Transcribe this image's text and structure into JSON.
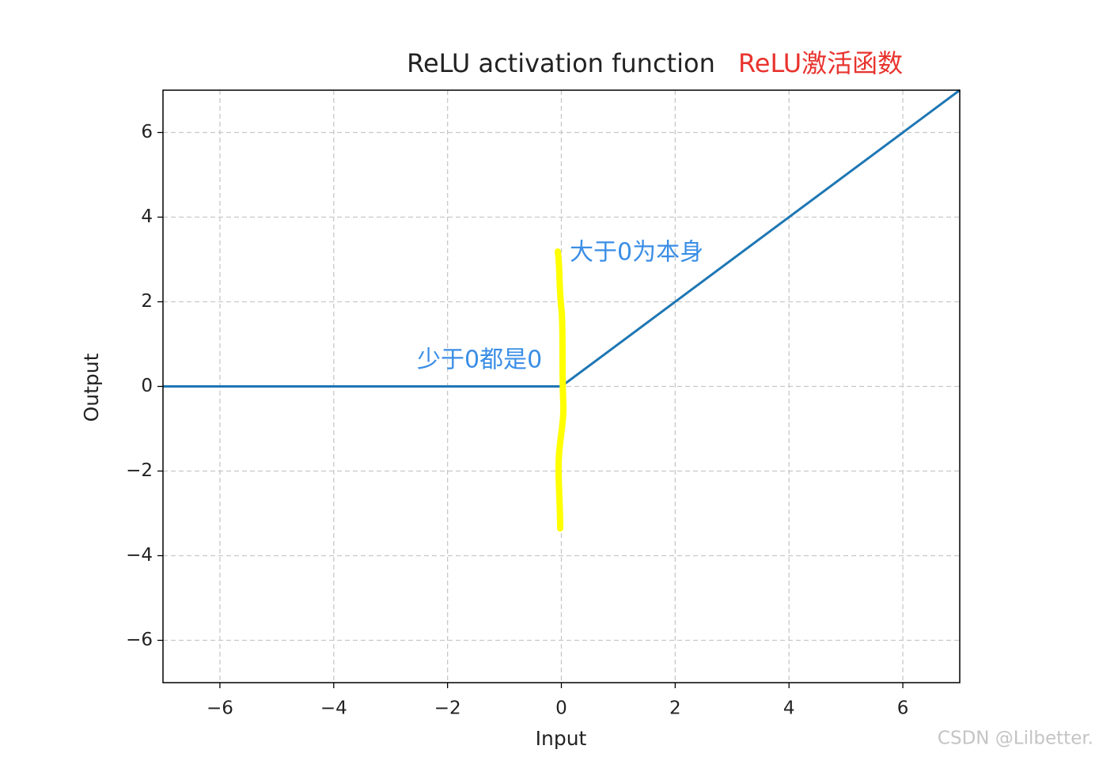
{
  "chart_data": {
    "type": "line",
    "title": "ReLU activation function",
    "xlabel": "Input",
    "ylabel": "Output",
    "x": [
      -7,
      0,
      7
    ],
    "values": [
      0,
      0,
      7
    ],
    "color": "#1f77b4",
    "xlim": [
      -7,
      7
    ],
    "ylim": [
      -7,
      7
    ],
    "xticks": [
      {
        "value": -6,
        "label": "−6"
      },
      {
        "value": -4,
        "label": "−4"
      },
      {
        "value": -2,
        "label": "−2"
      },
      0,
      2,
      4,
      6
    ],
    "yticks": [
      {
        "value": -6,
        "label": "−6"
      },
      {
        "value": -4,
        "label": "−4"
      },
      {
        "value": -2,
        "label": "−2"
      },
      0,
      2,
      4,
      6
    ],
    "grid": true,
    "annotations": [
      {
        "text": "ReLU激活函数",
        "color": "#e8332d"
      },
      {
        "text": "大于0为本身",
        "color": "#3a8ee6"
      },
      {
        "text": "少于0都是0",
        "color": "#3a8ee6"
      }
    ]
  },
  "watermark": "CSDN @Lilbetter."
}
